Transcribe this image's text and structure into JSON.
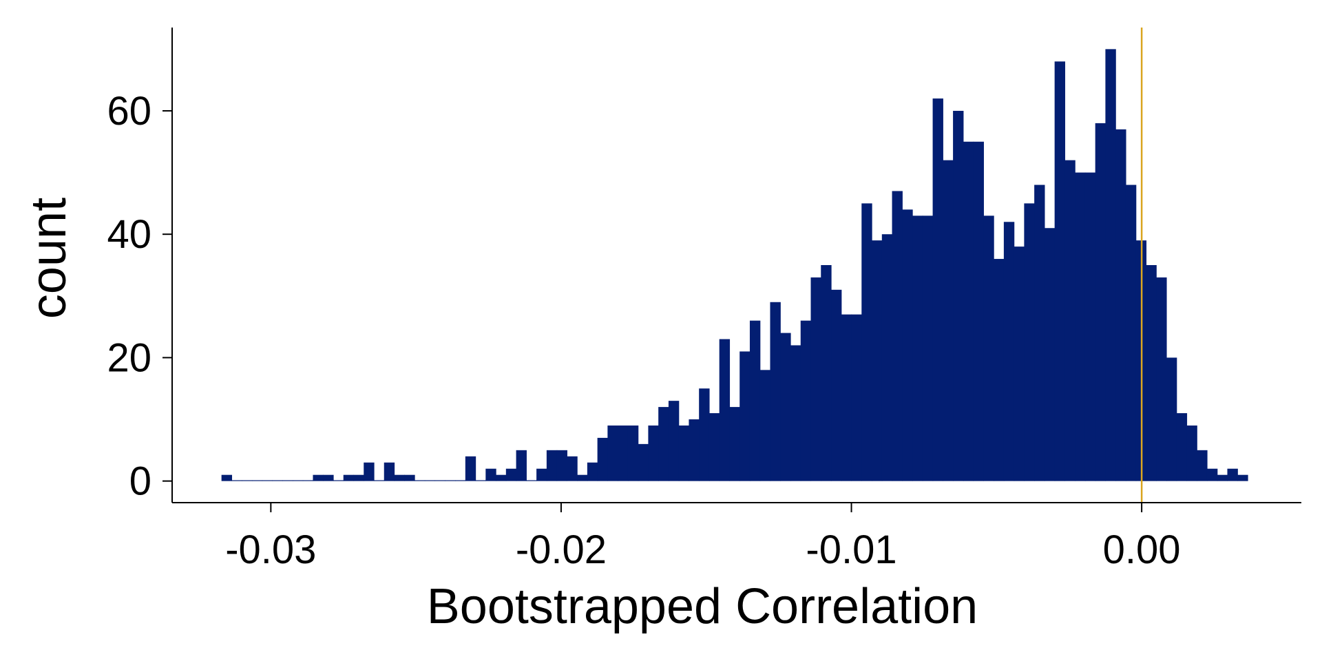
{
  "chart_data": {
    "type": "bar",
    "xlabel": "Bootstrapped Correlation",
    "ylabel": "count",
    "xlim": [
      -0.0334,
      0.0055
    ],
    "ylim": [
      -3.5,
      73.5
    ],
    "x_ticks": [
      -0.03,
      -0.02,
      -0.01,
      0.0
    ],
    "x_tick_labels": [
      "-0.03",
      "-0.02",
      "-0.01",
      "0.00"
    ],
    "y_ticks": [
      0,
      20,
      40,
      60
    ],
    "y_tick_labels": [
      "0",
      "20",
      "40",
      "60"
    ],
    "bin_start": -0.0317,
    "bin_width": 0.00035,
    "counts": [
      1,
      0,
      0,
      0,
      0,
      0,
      0,
      0,
      0,
      1,
      1,
      0,
      1,
      1,
      3,
      0,
      3,
      1,
      1,
      0,
      0,
      0,
      0,
      0,
      4,
      0,
      2,
      1,
      2,
      5,
      0,
      2,
      5,
      5,
      4,
      1,
      3,
      7,
      9,
      9,
      9,
      6,
      9,
      12,
      13,
      9,
      10,
      15,
      11,
      23,
      12,
      21,
      26,
      18,
      29,
      24,
      22,
      26,
      33,
      35,
      31,
      27,
      27,
      45,
      39,
      40,
      47,
      44,
      43,
      43,
      62,
      52,
      60,
      55,
      55,
      43,
      36,
      42,
      38,
      45,
      48,
      41,
      68,
      52,
      50,
      50,
      58,
      70,
      57,
      48,
      39,
      35,
      33,
      20,
      11,
      9,
      5,
      2,
      1,
      2,
      1
    ],
    "reference_line_x": 0.0,
    "colors": {
      "bars": "#031E72",
      "reference_line": "#DAA520",
      "axes": "#000000"
    },
    "grid": false
  }
}
